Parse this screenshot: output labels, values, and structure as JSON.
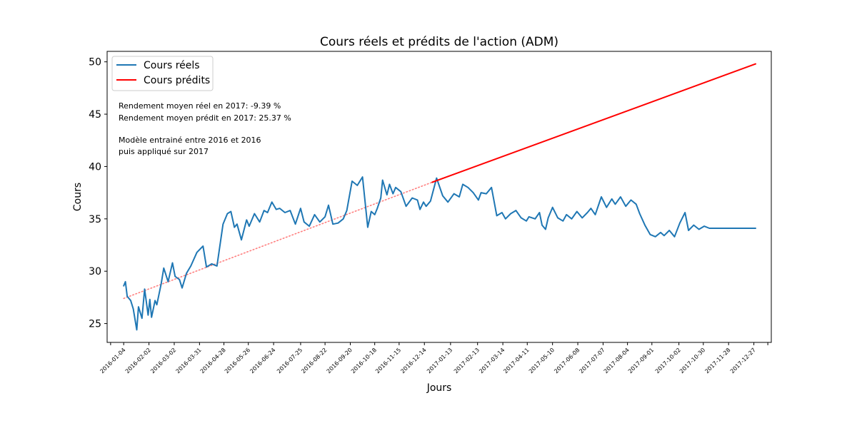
{
  "chart_data": {
    "type": "line",
    "title": "Cours réels et prédits de l'action (ADM)",
    "xlabel": "Jours",
    "ylabel": "Cours",
    "ylim": [
      23.2,
      51.0
    ],
    "xlim": [
      "2015-12-16",
      "2018-01-16"
    ],
    "yticks": [
      25,
      30,
      35,
      40,
      45,
      50
    ],
    "xticks": [
      "2016-01-04",
      "2016-02-02",
      "2016-03-02",
      "2016-03-31",
      "2016-04-28",
      "2016-05-26",
      "2016-06-24",
      "2016-07-25",
      "2016-08-22",
      "2016-09-20",
      "2016-10-18",
      "2016-11-15",
      "2016-12-14",
      "2017-01-13",
      "2017-02-13",
      "2017-03-14",
      "2017-04-11",
      "2017-05-10",
      "2017-06-08",
      "2017-07-07",
      "2017-08-04",
      "2017-09-01",
      "2017-10-02",
      "2017-10-30",
      "2017-11-28",
      "2017-12-27"
    ],
    "grid": false,
    "legend_position": "top-left",
    "legend": [
      "Cours réels",
      "Cours prédits"
    ],
    "annotations": [
      "Rendement moyen réel en 2017: -9.39 %",
      "Rendement moyen prédit en 2017: 25.37 %",
      "",
      "Modèle entrainé entre 2016 et 2016",
      "puis appliqué sur 2017"
    ],
    "series": [
      {
        "name": "Cours réels",
        "color": "#1f77b4",
        "style": "solid",
        "x": [
          "2016-01-04",
          "2016-01-06",
          "2016-01-08",
          "2016-01-12",
          "2016-01-15",
          "2016-01-19",
          "2016-01-21",
          "2016-01-25",
          "2016-01-28",
          "2016-02-01",
          "2016-02-03",
          "2016-02-05",
          "2016-02-09",
          "2016-02-11",
          "2016-02-16",
          "2016-02-19",
          "2016-02-24",
          "2016-02-29",
          "2016-03-03",
          "2016-03-08",
          "2016-03-11",
          "2016-03-16",
          "2016-03-21",
          "2016-03-28",
          "2016-04-04",
          "2016-04-08",
          "2016-04-14",
          "2016-04-20",
          "2016-04-27",
          "2016-05-02",
          "2016-05-06",
          "2016-05-10",
          "2016-05-13",
          "2016-05-18",
          "2016-05-24",
          "2016-05-27",
          "2016-06-02",
          "2016-06-08",
          "2016-06-13",
          "2016-06-17",
          "2016-06-22",
          "2016-06-27",
          "2016-07-01",
          "2016-07-07",
          "2016-07-13",
          "2016-07-19",
          "2016-07-25",
          "2016-07-29",
          "2016-08-04",
          "2016-08-10",
          "2016-08-16",
          "2016-08-22",
          "2016-08-26",
          "2016-08-31",
          "2016-09-06",
          "2016-09-12",
          "2016-09-16",
          "2016-09-22",
          "2016-09-28",
          "2016-10-04",
          "2016-10-10",
          "2016-10-14",
          "2016-10-18",
          "2016-10-21",
          "2016-10-25",
          "2016-10-27",
          "2016-11-01",
          "2016-11-04",
          "2016-11-08",
          "2016-11-11",
          "2016-11-17",
          "2016-11-23",
          "2016-11-30",
          "2016-12-06",
          "2016-12-09",
          "2016-12-13",
          "2016-12-16",
          "2016-12-21",
          "2016-12-28",
          "2017-01-04",
          "2017-01-10",
          "2017-01-17",
          "2017-01-23",
          "2017-01-27",
          "2017-02-02",
          "2017-02-08",
          "2017-02-14",
          "2017-02-17",
          "2017-02-23",
          "2017-03-01",
          "2017-03-07",
          "2017-03-13",
          "2017-03-17",
          "2017-03-23",
          "2017-03-29",
          "2017-04-04",
          "2017-04-10",
          "2017-04-13",
          "2017-04-20",
          "2017-04-25",
          "2017-04-28",
          "2017-05-02",
          "2017-05-05",
          "2017-05-10",
          "2017-05-16",
          "2017-05-22",
          "2017-05-26",
          "2017-06-01",
          "2017-06-07",
          "2017-06-13",
          "2017-06-19",
          "2017-06-23",
          "2017-06-28",
          "2017-07-05",
          "2017-07-11",
          "2017-07-17",
          "2017-07-21",
          "2017-07-27",
          "2017-08-02",
          "2017-08-08",
          "2017-08-14",
          "2017-08-18",
          "2017-08-24",
          "2017-08-30",
          "2017-09-05",
          "2017-09-11",
          "2017-09-15",
          "2017-09-21",
          "2017-09-27",
          "2017-10-03",
          "2017-10-09",
          "2017-10-13",
          "2017-10-19",
          "2017-10-25",
          "2017-10-31",
          "2017-11-06",
          "2017-11-10",
          "2017-11-16",
          "2017-11-22",
          "2017-11-28",
          "2017-12-04",
          "2017-12-08",
          "2017-12-14",
          "2017-12-20",
          "2017-12-29"
        ],
        "y": [
          28.6,
          29.0,
          27.6,
          27.2,
          26.4,
          24.4,
          26.6,
          25.5,
          28.3,
          25.8,
          27.3,
          25.6,
          27.2,
          26.8,
          28.8,
          30.3,
          29.0,
          30.8,
          29.5,
          29.2,
          28.4,
          29.8,
          30.5,
          31.8,
          32.4,
          30.4,
          30.7,
          30.5,
          34.5,
          35.5,
          35.7,
          34.2,
          34.5,
          33.0,
          34.9,
          34.3,
          35.5,
          34.7,
          35.8,
          35.6,
          36.6,
          35.9,
          36.0,
          35.6,
          35.8,
          34.5,
          36.0,
          34.7,
          34.3,
          35.4,
          34.7,
          35.2,
          36.3,
          34.5,
          34.6,
          35.0,
          35.8,
          38.6,
          38.2,
          39.0,
          34.2,
          35.7,
          35.4,
          36.0,
          37.0,
          38.7,
          37.3,
          38.3,
          37.4,
          38.0,
          37.6,
          36.2,
          37.0,
          36.8,
          35.9,
          36.6,
          36.2,
          36.7,
          38.9,
          37.2,
          36.6,
          37.4,
          37.1,
          38.3,
          38.0,
          37.5,
          36.8,
          37.5,
          37.4,
          38.0,
          35.3,
          35.6,
          35.0,
          35.5,
          35.8,
          35.1,
          34.8,
          35.2,
          35.0,
          35.6,
          34.4,
          34.0,
          35.1,
          36.1,
          35.1,
          34.8,
          35.4,
          35.0,
          35.7,
          35.1,
          35.6,
          36.0,
          35.4,
          37.1,
          36.1,
          36.9,
          36.4,
          37.1,
          36.2,
          36.8,
          36.4,
          35.5,
          34.4,
          33.5,
          33.3,
          33.7,
          33.4,
          33.9,
          33.3,
          34.6,
          35.6,
          33.9,
          34.4,
          34.0,
          34.3,
          34.1,
          34.1,
          34.1,
          34.1,
          34.1,
          34.1,
          34.1,
          34.1,
          34.1,
          34.1
        ]
      },
      {
        "name": "Cours prédits",
        "color": "#ff0000",
        "style": "solid",
        "x": [
          "2016-12-23",
          "2017-12-29"
        ],
        "y": [
          38.5,
          49.8
        ]
      },
      {
        "name": "",
        "color": "#ff7f7f",
        "style": "dotted",
        "x": [
          "2016-01-04",
          "2016-12-23"
        ],
        "y": [
          27.4,
          38.5
        ]
      }
    ]
  }
}
